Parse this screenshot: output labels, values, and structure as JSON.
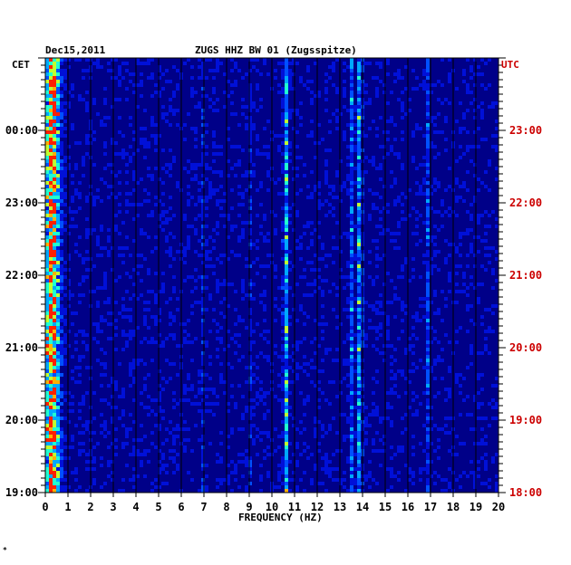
{
  "header": {
    "date": "Dec15,2011",
    "station": "ZUGS HHZ BW 01 (Zugsspitze)",
    "left_tz": "CET",
    "right_tz": "UTC"
  },
  "footer": {
    "mark": "*"
  },
  "colors": {
    "background": "#000088",
    "utc_label": "#cc0000",
    "gridline": "#000000"
  },
  "chart_data": {
    "type": "heatmap",
    "title": "ZUGS HHZ BW 01 (Zugsspitze)",
    "xlabel": "FREQUENCY (HZ)",
    "xlim": [
      0,
      20
    ],
    "x_ticks": [
      "0",
      "1",
      "2",
      "3",
      "4",
      "5",
      "6",
      "7",
      "8",
      "9",
      "10",
      "11",
      "12",
      "13",
      "14",
      "15",
      "16",
      "17",
      "18",
      "19",
      "20"
    ],
    "y_ticks_left": [
      "00:00",
      "23:00",
      "22:00",
      "21:00",
      "20:00",
      "19:00"
    ],
    "y_ticks_right": [
      "23:00",
      "22:00",
      "21:00",
      "20:00",
      "19:00",
      "18:00"
    ],
    "grid": true,
    "energy_bands": [
      {
        "freq": 0.3,
        "level": 1.0
      },
      {
        "freq": 10.6,
        "level": 0.7
      },
      {
        "freq": 13.9,
        "level": 0.75
      },
      {
        "freq": 13.5,
        "level": 0.4
      },
      {
        "freq": 7.0,
        "level": 0.25
      },
      {
        "freq": 9.0,
        "level": 0.25
      },
      {
        "freq": 16.9,
        "level": 0.3
      }
    ]
  }
}
